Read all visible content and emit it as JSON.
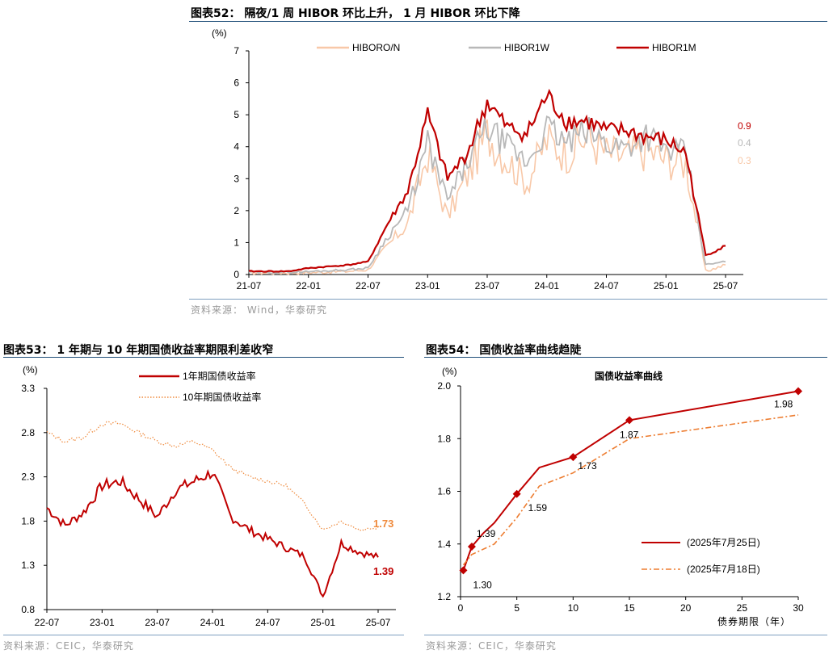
{
  "figures": [
    {
      "title": "图表52： 隔夜/1 周 HIBOR 环比上升， 1 月 HIBOR 环比下降",
      "source": "资料来源： Wind，华泰研究"
    },
    {
      "title": "图表53： 1 年期与 10 年期国债收益率期限利差收窄",
      "source": "资料来源：CEIC，华泰研究"
    },
    {
      "title": "图表54： 国债收益率曲线趋陡",
      "source": "资料来源：CEIC，华泰研究"
    }
  ],
  "chart_data": [
    {
      "type": "line",
      "ylabel": "(%)",
      "ylim": [
        0,
        7
      ],
      "yticks": [
        "0",
        "1",
        "2",
        "3",
        "4",
        "5",
        "6",
        "7"
      ],
      "x_ticks": [
        "21-07",
        "22-01",
        "22-07",
        "23-01",
        "23-07",
        "24-01",
        "24-07",
        "25-01",
        "25-07"
      ],
      "x_months": [
        "2021-07",
        "2021-09",
        "2021-11",
        "2022-01",
        "2022-03",
        "2022-05",
        "2022-07",
        "2022-09",
        "2022-11",
        "2023-01",
        "2023-03",
        "2023-05",
        "2023-07",
        "2023-09",
        "2023-11",
        "2024-01",
        "2024-03",
        "2024-05",
        "2024-07",
        "2024-09",
        "2024-11",
        "2025-01",
        "2025-03",
        "2025-05",
        "2025-07"
      ],
      "series": [
        {
          "name": "HIBORO/N",
          "color": "#f8c8a8",
          "values": [
            0.05,
            0.05,
            0.05,
            0.06,
            0.08,
            0.1,
            0.15,
            0.9,
            1.6,
            3.8,
            1.8,
            3.1,
            4.4,
            3.6,
            2.9,
            4.2,
            3.8,
            4.3,
            3.8,
            3.7,
            3.9,
            3.6,
            3.5,
            0.1,
            0.3
          ],
          "end_label": "0.3"
        },
        {
          "name": "HIBOR1W",
          "color": "#b8b8b8",
          "values": [
            0.07,
            0.07,
            0.07,
            0.09,
            0.12,
            0.15,
            0.2,
            1.2,
            2.0,
            4.1,
            2.3,
            3.5,
            4.6,
            4.0,
            3.5,
            4.6,
            4.1,
            4.5,
            4.1,
            4.0,
            4.4,
            3.9,
            3.8,
            0.3,
            0.4
          ],
          "end_label": "0.4"
        },
        {
          "name": "HIBOR1M",
          "color": "#c00000",
          "values": [
            0.1,
            0.1,
            0.1,
            0.2,
            0.25,
            0.3,
            0.4,
            1.6,
            2.6,
            5.0,
            3.0,
            3.8,
            5.4,
            4.6,
            4.4,
            5.6,
            4.8,
            4.8,
            4.5,
            4.5,
            4.3,
            4.2,
            3.8,
            0.6,
            0.9
          ],
          "end_label": "0.9"
        }
      ]
    },
    {
      "type": "line",
      "ylabel": "(%)",
      "ylim": [
        0.8,
        3.3
      ],
      "yticks": [
        "0.8",
        "1.3",
        "1.8",
        "2.3",
        "2.8",
        "3.3"
      ],
      "x_ticks": [
        "22-07",
        "23-01",
        "23-07",
        "24-01",
        "24-07",
        "25-01",
        "25-07"
      ],
      "x_months": [
        "2022-07",
        "2022-09",
        "2022-11",
        "2023-01",
        "2023-03",
        "2023-05",
        "2023-07",
        "2023-09",
        "2023-11",
        "2024-01",
        "2024-03",
        "2024-05",
        "2024-07",
        "2024-09",
        "2024-11",
        "2025-01",
        "2025-03",
        "2025-05",
        "2025-07"
      ],
      "series": [
        {
          "name": "1年期国债收益率",
          "color": "#c00000",
          "style": "solid",
          "values": [
            1.95,
            1.75,
            1.9,
            2.2,
            2.25,
            2.05,
            1.85,
            2.15,
            2.25,
            2.35,
            1.85,
            1.7,
            1.6,
            1.5,
            1.4,
            0.95,
            1.55,
            1.45,
            1.39
          ],
          "end_label": "1.39"
        },
        {
          "name": "10年期国债收益率",
          "color": "#ef8a3c",
          "style": "dotted",
          "values": [
            2.8,
            2.7,
            2.75,
            2.9,
            2.9,
            2.8,
            2.7,
            2.65,
            2.7,
            2.6,
            2.4,
            2.3,
            2.25,
            2.2,
            2.0,
            1.7,
            1.8,
            1.7,
            1.73
          ],
          "end_label": "1.73"
        }
      ]
    },
    {
      "type": "line",
      "title": "国债收益率曲线",
      "ylabel": "(%)",
      "xlabel": "债券期限（年）",
      "ylim": [
        1.2,
        2.0
      ],
      "xlim": [
        0,
        30
      ],
      "yticks": [
        "1.2",
        "1.4",
        "1.6",
        "1.8",
        "2.0"
      ],
      "xticks": [
        "0",
        "5",
        "10",
        "15",
        "20",
        "25",
        "30"
      ],
      "series": [
        {
          "name": "(2025年7月25日)",
          "color": "#c00000",
          "style": "solid",
          "x": [
            0.25,
            1,
            2,
            3,
            5,
            7,
            10,
            15,
            30
          ],
          "y": [
            1.3,
            1.39,
            1.44,
            1.48,
            1.59,
            1.69,
            1.73,
            1.87,
            1.98
          ],
          "markers_x": [
            0.25,
            1,
            5,
            10,
            15,
            30
          ],
          "markers_y": [
            1.3,
            1.39,
            1.59,
            1.73,
            1.87,
            1.98
          ],
          "labels": [
            "1.30",
            "1.39",
            "1.59",
            "1.73",
            "1.87",
            "1.98"
          ]
        },
        {
          "name": "(2025年7月18日)",
          "color": "#ed7d31",
          "style": "dashdot",
          "x": [
            0.25,
            1,
            2,
            3,
            5,
            7,
            10,
            15,
            30
          ],
          "y": [
            1.32,
            1.36,
            1.38,
            1.4,
            1.5,
            1.62,
            1.67,
            1.8,
            1.89
          ]
        }
      ]
    }
  ]
}
